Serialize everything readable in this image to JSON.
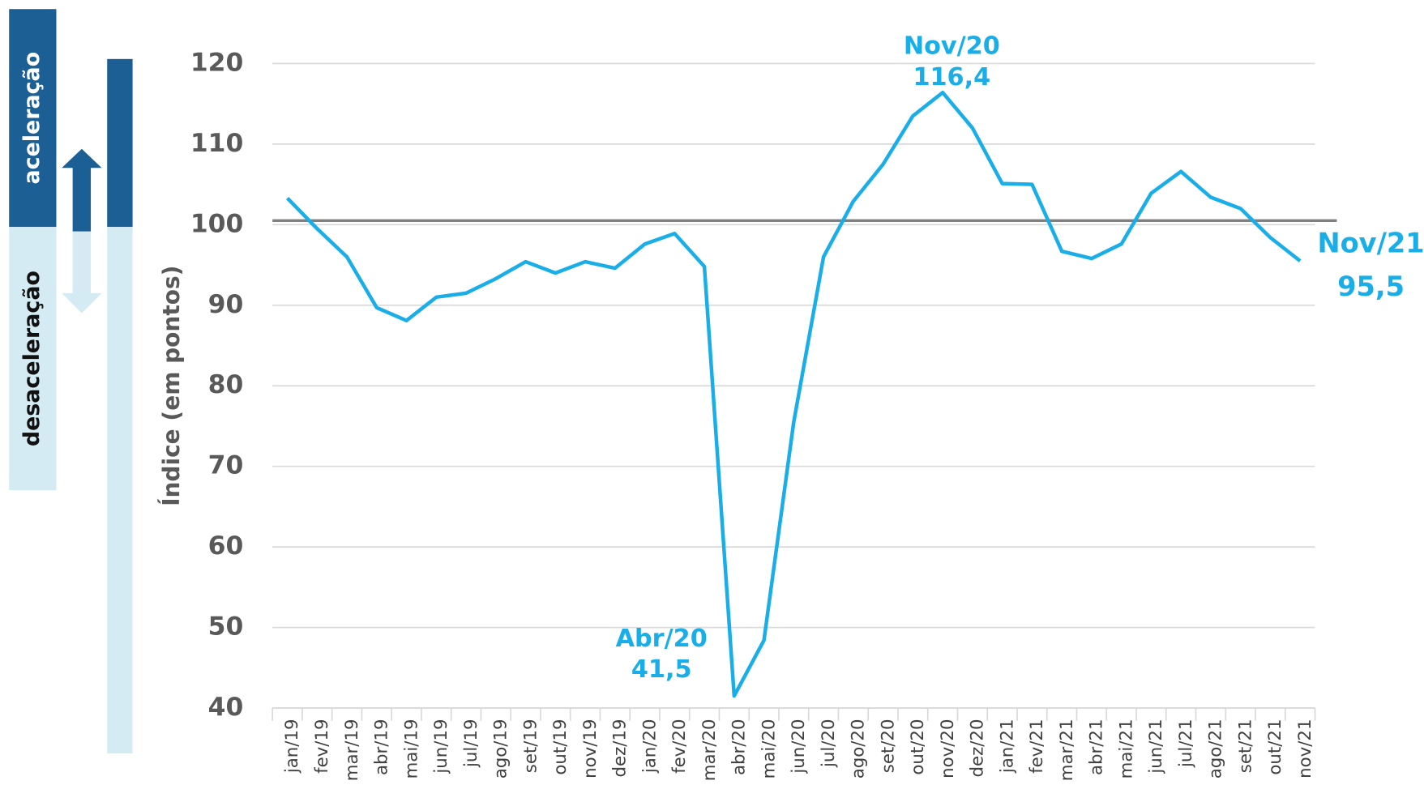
{
  "chart_data": {
    "type": "line",
    "y_label": "Índice (em pontos)",
    "side_labels": {
      "up": "aceleração",
      "down": "desaceleração"
    },
    "categories": [
      "jan/19",
      "fev/19",
      "mar/19",
      "abr/19",
      "mai/19",
      "jun/19",
      "jul/19",
      "ago/19",
      "set/19",
      "out/19",
      "nov/19",
      "dez/19",
      "jan/20",
      "fev/20",
      "mar/20",
      "abr/20",
      "mai/20",
      "jun/20",
      "jul/20",
      "ago/20",
      "set/20",
      "out/20",
      "nov/20",
      "dez/20",
      "jan/21",
      "fev/21",
      "mar/21",
      "abr/21",
      "mai/21",
      "jun/21",
      "jul/21",
      "ago/21",
      "set/21",
      "out/21",
      "nov/21"
    ],
    "values": [
      103.3,
      99.5,
      96,
      89.7,
      88.1,
      91,
      91.5,
      93.3,
      95.4,
      94,
      95.4,
      94.6,
      97.6,
      98.9,
      94.8,
      41.5,
      48.4,
      75.5,
      96,
      102.9,
      107.5,
      113.5,
      116.4,
      112,
      105.1,
      105,
      96.7,
      95.8,
      97.6,
      103.9,
      106.6,
      103.4,
      102,
      98.4,
      95.5
    ],
    "color": "#19aee8",
    "reference_line": 100.5,
    "ylim": [
      40,
      120
    ],
    "yticks": [
      40,
      50,
      60,
      70,
      80,
      90,
      100,
      110,
      120
    ],
    "grid": true,
    "annotations": [
      {
        "text": "Nov/20",
        "value_label": "116,4"
      },
      {
        "text": "Abr/20",
        "value_label": "41,5"
      },
      {
        "text": "Nov/21",
        "value_label": "95,5"
      }
    ]
  }
}
